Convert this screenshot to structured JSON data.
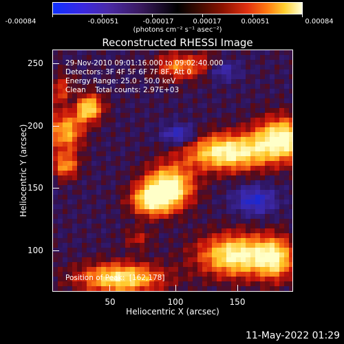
{
  "colorbar": {
    "tick_labels": [
      "-0.00084",
      "-0.00051",
      "-0.00017",
      "0.00017",
      "0.00051",
      "0.00084"
    ],
    "units_label": "(photons cm⁻² s⁻¹ asec⁻²)"
  },
  "title": "Reconstructed RHESSI Image",
  "info": {
    "time_range": "29-Nov-2010 09:01:16.000 to 09:02:40.000",
    "detectors": "Detectors: 3F 4F 5F 6F 7F 8F, Att 0",
    "energy": "Energy Range: 25.0 - 50.0 keV",
    "clean": "Clean    Total counts: 2.97E+03",
    "peak": "Position of Peak:  [162,178]"
  },
  "axes": {
    "xlabel": "Heliocentric X (arcsec)",
    "ylabel": "Heliocentric Y (arcsec)",
    "xticks": [
      "50",
      "100",
      "150"
    ],
    "yticks": [
      "250",
      "200",
      "150",
      "100"
    ]
  },
  "timestamp": "11-May-2022 01:29"
}
